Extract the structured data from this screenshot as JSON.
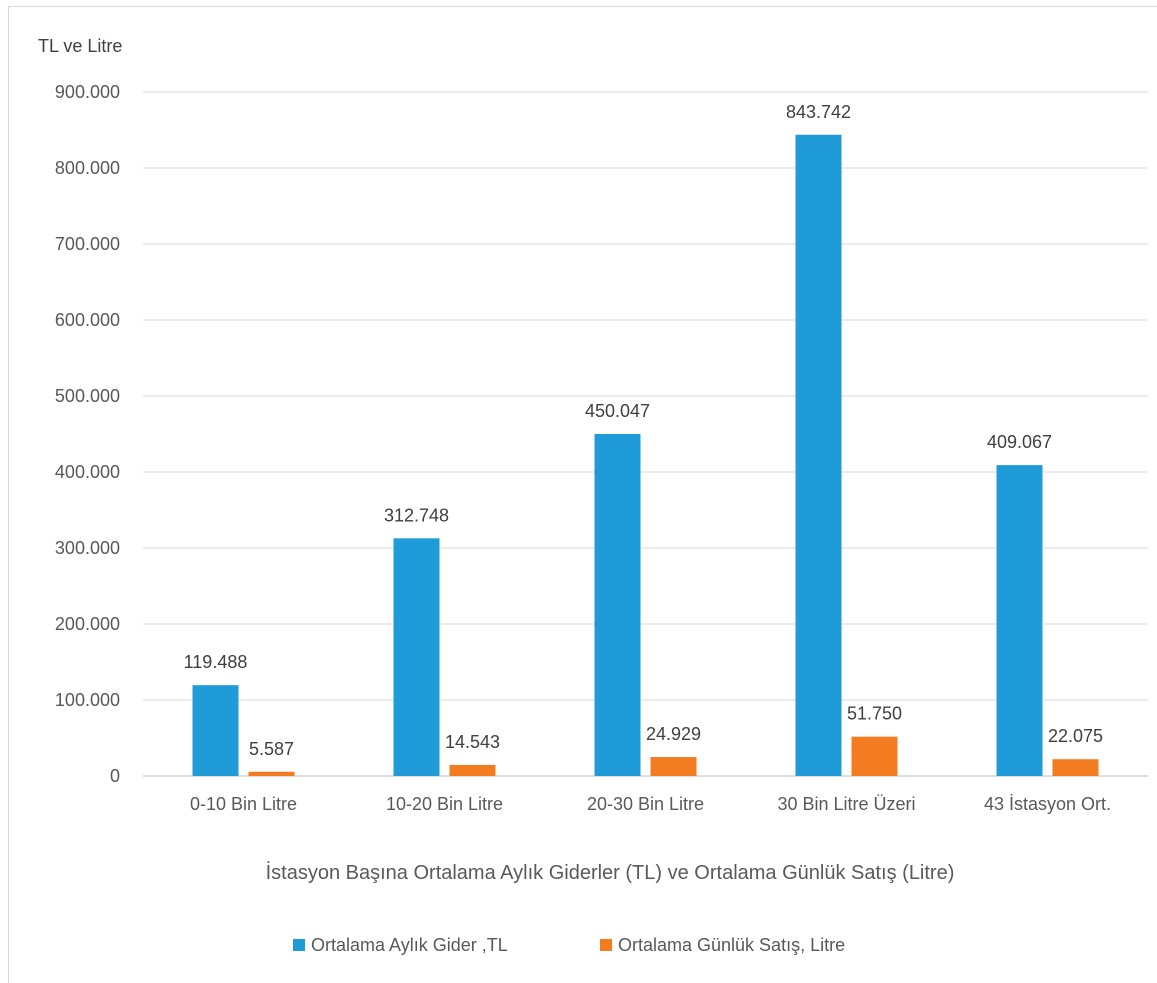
{
  "chart_data": {
    "type": "bar",
    "title": "",
    "ylabel": "TL ve Litre",
    "xlabel": "İstasyon Başına Ortalama Aylık Giderler (TL) ve Ortalama Günlük Satış (Litre)",
    "categories": [
      "0-10 Bin Litre",
      "10-20 Bin Litre",
      "20-30 Bin Litre",
      "30 Bin Litre Üzeri",
      "43 İstasyon Ort."
    ],
    "series": [
      {
        "name": "Ortalama Aylık Gider ,TL",
        "color": "#1f9bd7",
        "values": [
          119488,
          312748,
          450047,
          843742,
          409067
        ],
        "labels": [
          "119.488",
          "312.748",
          "450.047",
          "843.742",
          "409.067"
        ]
      },
      {
        "name": "Ortalama Günlük Satış, Litre",
        "color": "#f47c20",
        "values": [
          5587,
          14543,
          24929,
          51750,
          22075
        ],
        "labels": [
          "5.587",
          "14.543",
          "24.929",
          "51.750",
          "22.075"
        ]
      }
    ],
    "ylim": [
      0,
      900000
    ],
    "yticks": [
      0,
      100000,
      200000,
      300000,
      400000,
      500000,
      600000,
      700000,
      800000,
      900000
    ],
    "ytick_labels": [
      "0",
      "100.000",
      "200.000",
      "300.000",
      "400.000",
      "500.000",
      "600.000",
      "700.000",
      "800.000",
      "900.000"
    ],
    "grid": true,
    "legend_position": "bottom"
  }
}
